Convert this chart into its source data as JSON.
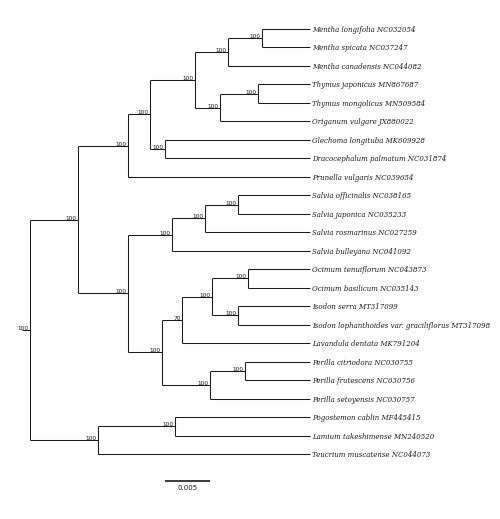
{
  "taxa": [
    "Mentha longifolia NC032054",
    "Mentha spicata NC037247",
    "Mentha canadensis NC044082",
    "Thymus japonicus MN867687",
    "Thymus mongolicus MN509584",
    "Origanum vulgare JX880022",
    "Glechoma longituba MK609928",
    "Dracocephalum palmatum NC031874",
    "Prunella vulgaris NC039654",
    "Salvia officinalis NC038165",
    "Salvia japonica NC035233",
    "Salvia rosmarinus NC027259",
    "Salvia bulleyana NC041092",
    "Ocimum tenuiflorum NC043873",
    "Ocimum basilicum NC035143",
    "Isodon serra MT317099",
    "Isodon lophanthoides var. graciliflorus MT317098",
    "Lavandula dentata MK791204",
    "Perilla citriodora NC030755",
    "Perilla frutescens NC030756",
    "Perilla setoyensis NC030757",
    "Pogostemon cablin MF445415",
    "Lamium takeshimense MN240520",
    "Teucrium muscatense NC044073"
  ],
  "background_color": "#ffffff",
  "line_color": "#1a1a1a",
  "text_color": "#1a1a1a",
  "font_size": 5.0,
  "bootstrap_font_size": 4.2,
  "scale_bar_label": "0.005"
}
